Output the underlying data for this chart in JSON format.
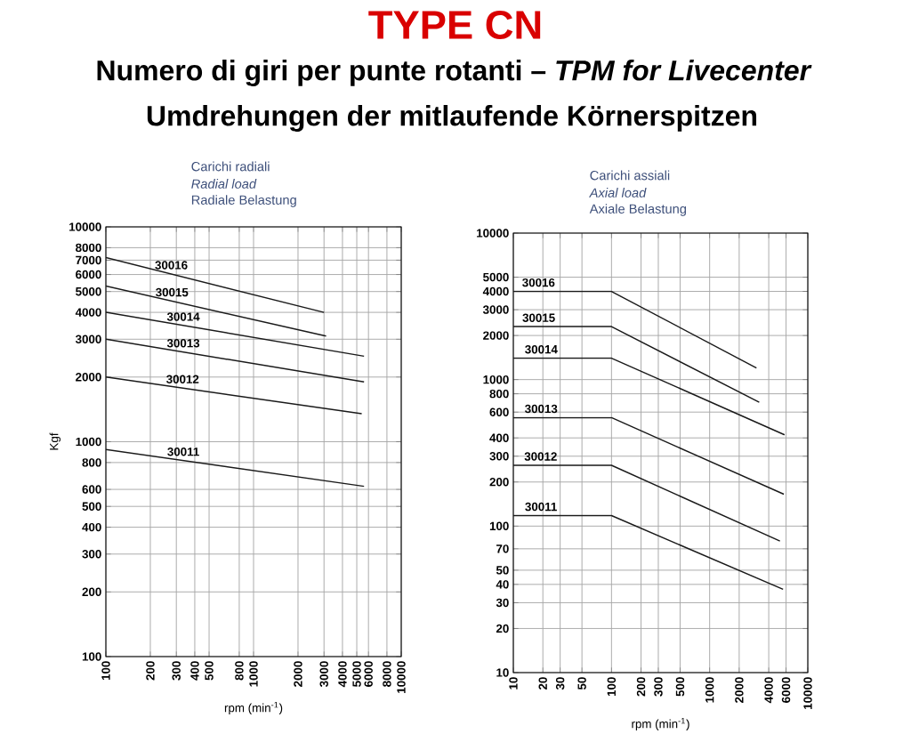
{
  "chart_data": [
    {
      "type": "line",
      "title": "TYPE CN",
      "subtitle": "Numero di giri per punte rotanti – *TPM for Livecenter*",
      "annotations": [
        "Umdrehungen der mitlaufende Körnerspitzen",
        "Carichi radiali",
        "*Radial load*",
        "Radiale Belastung"
      ],
      "xlabel": "rpm (min$^{-1}$)",
      "ylabel": "Kgf",
      "log": "xy",
      "grid": true,
      "line_style": "solid",
      "marker": "none",
      "xlim": [
        100,
        10000
      ],
      "ylim": [
        100,
        10000
      ],
      "xticks": [
        100,
        200,
        300,
        400,
        500,
        800,
        1000,
        2000,
        3000,
        4000,
        5000,
        6000,
        8000,
        10000
      ],
      "yticks": [
        100,
        200,
        300,
        400,
        500,
        600,
        800,
        1000,
        2000,
        3000,
        4000,
        5000,
        6000,
        7000,
        8000,
        10000
      ],
      "series": [
        {
          "name": "30016",
          "color": "#1a1a1a",
          "x": [
            100,
            3000
          ],
          "values": [
            7200,
            4000
          ]
        },
        {
          "name": "30015",
          "color": "#1a1a1a",
          "x": [
            100,
            3100
          ],
          "values": [
            5300,
            3100
          ]
        },
        {
          "name": "30014",
          "color": "#1a1a1a",
          "x": [
            100,
            5600
          ],
          "values": [
            4000,
            2500
          ]
        },
        {
          "name": "30013",
          "color": "#1a1a1a",
          "x": [
            100,
            5600
          ],
          "values": [
            3000,
            1900
          ]
        },
        {
          "name": "30012",
          "color": "#1a1a1a",
          "x": [
            100,
            5400
          ],
          "values": [
            2000,
            1350
          ]
        },
        {
          "name": "30011",
          "color": "#1a1a1a",
          "x": [
            100,
            5600
          ],
          "values": [
            920,
            620
          ]
        }
      ]
    },
    {
      "type": "line",
      "annotations": [
        "Carichi assiali",
        "*Axial load*",
        "Axiale Belastung"
      ],
      "xlabel": "rpm (min$^{-1}$)",
      "log": "xy",
      "grid": true,
      "line_style": "solid",
      "marker": "none",
      "xlim": [
        10,
        10000
      ],
      "ylim": [
        10,
        10000
      ],
      "xticks": [
        10,
        20,
        30,
        50,
        100,
        200,
        300,
        500,
        1000,
        2000,
        4000,
        6000,
        10000
      ],
      "yticks": [
        10,
        20,
        30,
        40,
        50,
        70,
        100,
        200,
        300,
        400,
        600,
        800,
        1000,
        2000,
        3000,
        4000,
        5000,
        10000
      ],
      "series": [
        {
          "name": "30016",
          "color": "#1a1a1a",
          "x": [
            10,
            100,
            3000
          ],
          "values": [
            4000,
            4000,
            1200
          ]
        },
        {
          "name": "30015",
          "color": "#1a1a1a",
          "x": [
            10,
            100,
            3200
          ],
          "values": [
            2300,
            2300,
            700
          ]
        },
        {
          "name": "30014",
          "color": "#1a1a1a",
          "x": [
            10,
            100,
            5800
          ],
          "values": [
            1400,
            1400,
            420
          ]
        },
        {
          "name": "30013",
          "color": "#1a1a1a",
          "x": [
            10,
            100,
            5700
          ],
          "values": [
            550,
            550,
            165
          ]
        },
        {
          "name": "30012",
          "color": "#1a1a1a",
          "x": [
            10,
            100,
            5200
          ],
          "values": [
            260,
            260,
            79
          ]
        },
        {
          "name": "30011",
          "color": "#1a1a1a",
          "x": [
            10,
            100,
            5600
          ],
          "values": [
            118,
            118,
            37
          ]
        }
      ]
    }
  ]
}
